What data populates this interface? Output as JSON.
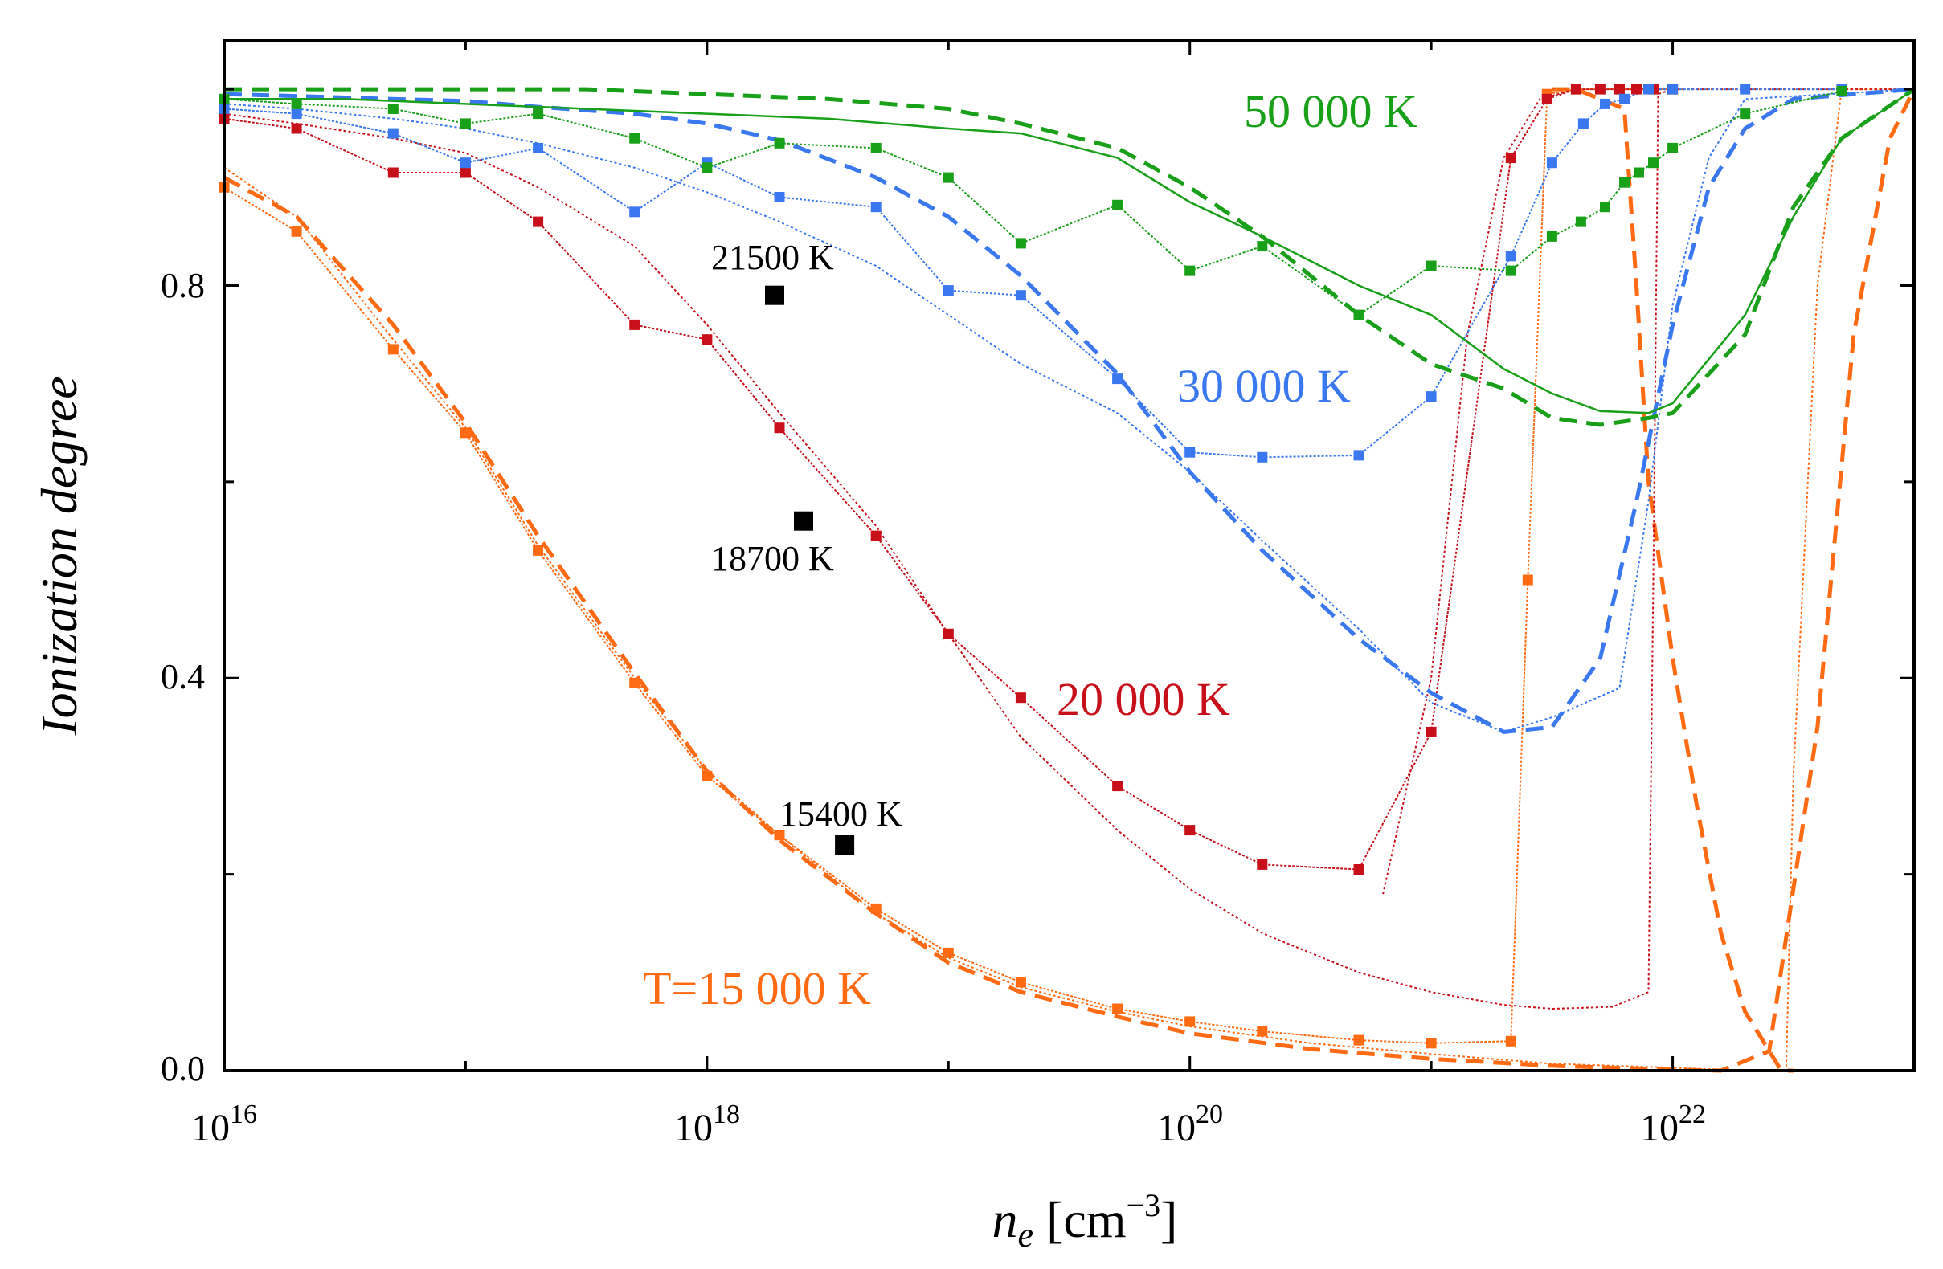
{
  "chart_data": {
    "type": "line",
    "title": "",
    "xlabel": {
      "main": "n",
      "sub": "e",
      "unit": " [cm",
      "sup": "−3",
      "close": "]"
    },
    "ylabel": "Ionization degree",
    "xscale": "log",
    "xlim_log10": [
      16,
      23
    ],
    "ylim": [
      0,
      1.05
    ],
    "xticks": [
      {
        "base": "10",
        "exp": "16",
        "log10": 16
      },
      {
        "base": "10",
        "exp": "18",
        "log10": 18
      },
      {
        "base": "10",
        "exp": "20",
        "log10": 20
      },
      {
        "base": "10",
        "exp": "22",
        "log10": 22
      }
    ],
    "yticks": [
      {
        "label": "0.0",
        "value": 0.0
      },
      {
        "label": "0.4",
        "value": 0.4
      },
      {
        "label": "0.8",
        "value": 0.8
      }
    ],
    "colors": {
      "T15000": "#ff6a13",
      "T20000": "#c8101a",
      "T30000": "#3a78f0",
      "T50000": "#18a018",
      "experiment": "#000000",
      "axes": "#000000"
    },
    "series": [
      {
        "name": "T=15 000 K",
        "color": "T15000",
        "label": "T=15 000 K",
        "dashed": [
          [
            16.0,
            0.91
          ],
          [
            16.3,
            0.87
          ],
          [
            16.7,
            0.76
          ],
          [
            17.0,
            0.66
          ],
          [
            17.3,
            0.545
          ],
          [
            17.7,
            0.405
          ],
          [
            18.0,
            0.305
          ],
          [
            18.3,
            0.235
          ],
          [
            18.7,
            0.16
          ],
          [
            19.0,
            0.11
          ],
          [
            19.3,
            0.08
          ],
          [
            19.7,
            0.055
          ],
          [
            20.0,
            0.038
          ],
          [
            20.5,
            0.022
          ],
          [
            21.0,
            0.012
          ],
          [
            21.5,
            0.005
          ],
          [
            22.0,
            0.001
          ],
          [
            22.2,
            0.0
          ],
          [
            22.4,
            0.02
          ],
          [
            22.6,
            0.35
          ],
          [
            22.75,
            0.75
          ],
          [
            22.9,
            0.95
          ],
          [
            23.0,
            1.0
          ]
        ],
        "thin_dotted": [
          [
            16.0,
            0.92
          ],
          [
            16.3,
            0.87
          ],
          [
            16.7,
            0.745
          ],
          [
            17.0,
            0.655
          ],
          [
            17.3,
            0.535
          ],
          [
            17.7,
            0.4
          ],
          [
            18.0,
            0.305
          ],
          [
            18.3,
            0.24
          ],
          [
            18.7,
            0.16
          ],
          [
            19.0,
            0.115
          ],
          [
            19.3,
            0.085
          ],
          [
            19.7,
            0.06
          ],
          [
            20.0,
            0.045
          ],
          [
            20.5,
            0.028
          ],
          [
            21.0,
            0.017
          ],
          [
            21.5,
            0.007
          ],
          [
            22.0,
            0.003
          ],
          [
            22.3,
            0.0
          ],
          [
            22.47,
            0.0
          ],
          [
            22.5,
            0.3
          ],
          [
            22.6,
            0.8
          ],
          [
            22.7,
            1.0
          ],
          [
            23.0,
            1.0
          ]
        ],
        "markers": [
          [
            16.0,
            0.9
          ],
          [
            16.3,
            0.855
          ],
          [
            16.7,
            0.735
          ],
          [
            17.0,
            0.65
          ],
          [
            17.3,
            0.53
          ],
          [
            17.7,
            0.395
          ],
          [
            18.0,
            0.3
          ],
          [
            18.3,
            0.24
          ],
          [
            18.7,
            0.165
          ],
          [
            19.0,
            0.12
          ],
          [
            19.3,
            0.09
          ],
          [
            19.7,
            0.063
          ],
          [
            20.0,
            0.05
          ],
          [
            20.3,
            0.04
          ],
          [
            20.7,
            0.031
          ],
          [
            21.0,
            0.028
          ],
          [
            21.33,
            0.03
          ],
          [
            21.4,
            0.5
          ],
          [
            21.48,
            0.995
          ],
          [
            21.6,
            1.0
          ],
          [
            22.0,
            1.0
          ]
        ],
        "markers_connected": true,
        "extra_line": {
          "style": "dashed",
          "points": [
            [
              21.5,
              1.0
            ],
            [
              21.6,
              1.0
            ],
            [
              21.7,
              0.99
            ],
            [
              21.8,
              0.98
            ],
            [
              21.85,
              0.8
            ],
            [
              21.9,
              0.6
            ],
            [
              22.0,
              0.42
            ],
            [
              22.1,
              0.27
            ],
            [
              22.2,
              0.14
            ],
            [
              22.3,
              0.06
            ],
            [
              22.45,
              0.0
            ],
            [
              22.5,
              0.0
            ]
          ]
        }
      },
      {
        "name": "20 000 K",
        "color": "T20000",
        "label": "20 000 K",
        "thin_dotted": [
          [
            16.0,
            0.975
          ],
          [
            16.3,
            0.965
          ],
          [
            16.7,
            0.95
          ],
          [
            17.0,
            0.935
          ],
          [
            17.3,
            0.9
          ],
          [
            17.7,
            0.84
          ],
          [
            18.0,
            0.76
          ],
          [
            18.3,
            0.67
          ],
          [
            18.7,
            0.555
          ],
          [
            19.0,
            0.445
          ],
          [
            19.3,
            0.34
          ],
          [
            19.7,
            0.245
          ],
          [
            20.0,
            0.185
          ],
          [
            20.3,
            0.14
          ],
          [
            20.7,
            0.1
          ],
          [
            21.0,
            0.08
          ],
          [
            21.3,
            0.067
          ],
          [
            21.5,
            0.063
          ],
          [
            21.75,
            0.065
          ],
          [
            21.9,
            0.08
          ],
          [
            21.92,
            0.5
          ],
          [
            21.94,
            0.995
          ],
          [
            22.0,
            1.0
          ],
          [
            23.0,
            1.0
          ]
        ],
        "markers": [
          [
            16.0,
            0.97
          ],
          [
            16.3,
            0.96
          ],
          [
            16.7,
            0.915
          ],
          [
            17.0,
            0.915
          ],
          [
            17.3,
            0.865
          ],
          [
            17.7,
            0.76
          ],
          [
            18.0,
            0.745
          ],
          [
            18.3,
            0.655
          ],
          [
            18.7,
            0.545
          ],
          [
            19.0,
            0.445
          ],
          [
            19.3,
            0.38
          ],
          [
            19.7,
            0.29
          ],
          [
            20.0,
            0.245
          ],
          [
            20.3,
            0.21
          ],
          [
            20.7,
            0.205
          ],
          [
            21.0,
            0.345
          ],
          [
            21.33,
            0.93
          ],
          [
            21.48,
            0.99
          ],
          [
            21.6,
            1.0
          ],
          [
            21.7,
            1.0
          ],
          [
            21.78,
            1.0
          ],
          [
            21.85,
            1.0
          ],
          [
            21.92,
            1.0
          ],
          [
            22.0,
            1.0
          ]
        ],
        "markers_connected": true,
        "extra_line": {
          "style": "dotted",
          "points": [
            [
              20.8,
              0.18
            ],
            [
              21.0,
              0.4
            ],
            [
              21.15,
              0.75
            ],
            [
              21.3,
              0.93
            ],
            [
              21.45,
              0.99
            ],
            [
              21.6,
              1.0
            ]
          ]
        }
      },
      {
        "name": "30 000 K",
        "color": "T30000",
        "label": "30 000 K",
        "dashed": [
          [
            16.0,
            0.995
          ],
          [
            16.3,
            0.993
          ],
          [
            16.7,
            0.99
          ],
          [
            17.0,
            0.988
          ],
          [
            17.3,
            0.982
          ],
          [
            17.7,
            0.975
          ],
          [
            18.0,
            0.965
          ],
          [
            18.3,
            0.948
          ],
          [
            18.7,
            0.91
          ],
          [
            19.0,
            0.87
          ],
          [
            19.3,
            0.81
          ],
          [
            19.7,
            0.71
          ],
          [
            20.0,
            0.61
          ],
          [
            20.3,
            0.53
          ],
          [
            20.7,
            0.44
          ],
          [
            21.0,
            0.385
          ],
          [
            21.3,
            0.345
          ],
          [
            21.5,
            0.35
          ],
          [
            21.7,
            0.42
          ],
          [
            21.85,
            0.58
          ],
          [
            22.0,
            0.76
          ],
          [
            22.15,
            0.9
          ],
          [
            22.3,
            0.96
          ],
          [
            22.5,
            0.99
          ],
          [
            23.0,
            1.0
          ]
        ],
        "thin_dotted": [
          [
            16.0,
            0.985
          ],
          [
            16.3,
            0.98
          ],
          [
            16.7,
            0.97
          ],
          [
            17.0,
            0.96
          ],
          [
            17.3,
            0.945
          ],
          [
            17.7,
            0.92
          ],
          [
            18.0,
            0.895
          ],
          [
            18.3,
            0.865
          ],
          [
            18.7,
            0.82
          ],
          [
            19.0,
            0.77
          ],
          [
            19.3,
            0.72
          ],
          [
            19.7,
            0.67
          ],
          [
            20.0,
            0.61
          ],
          [
            20.3,
            0.54
          ],
          [
            20.7,
            0.45
          ],
          [
            21.0,
            0.375
          ],
          [
            21.3,
            0.345
          ],
          [
            21.5,
            0.36
          ],
          [
            21.78,
            0.39
          ],
          [
            21.9,
            0.58
          ],
          [
            22.0,
            0.78
          ],
          [
            22.15,
            0.93
          ],
          [
            22.3,
            0.99
          ],
          [
            23.0,
            1.0
          ]
        ],
        "markers": [
          [
            16.0,
            0.98
          ],
          [
            16.3,
            0.975
          ],
          [
            16.7,
            0.955
          ],
          [
            17.0,
            0.925
          ],
          [
            17.3,
            0.94
          ],
          [
            17.7,
            0.875
          ],
          [
            18.0,
            0.925
          ],
          [
            18.3,
            0.89
          ],
          [
            18.7,
            0.88
          ],
          [
            19.0,
            0.795
          ],
          [
            19.3,
            0.79
          ],
          [
            19.7,
            0.705
          ],
          [
            20.0,
            0.63
          ],
          [
            20.3,
            0.625
          ],
          [
            20.7,
            0.627
          ],
          [
            21.0,
            0.687
          ],
          [
            21.33,
            0.83
          ],
          [
            21.5,
            0.925
          ],
          [
            21.63,
            0.965
          ],
          [
            21.72,
            0.985
          ],
          [
            21.8,
            0.99
          ],
          [
            21.9,
            1.0
          ],
          [
            22.0,
            1.0
          ],
          [
            22.3,
            1.0
          ],
          [
            22.7,
            1.0
          ]
        ],
        "markers_connected": true
      },
      {
        "name": "50 000 K",
        "color": "T50000",
        "label": "50 000 K",
        "dashed": [
          [
            16.0,
            1.0
          ],
          [
            16.5,
            1.0
          ],
          [
            17.0,
            1.0
          ],
          [
            17.5,
            1.0
          ],
          [
            18.0,
            0.995
          ],
          [
            18.5,
            0.99
          ],
          [
            19.0,
            0.98
          ],
          [
            19.3,
            0.965
          ],
          [
            19.7,
            0.94
          ],
          [
            20.0,
            0.9
          ],
          [
            20.3,
            0.85
          ],
          [
            20.7,
            0.77
          ],
          [
            21.0,
            0.72
          ],
          [
            21.3,
            0.695
          ],
          [
            21.5,
            0.665
          ],
          [
            21.7,
            0.658
          ],
          [
            21.9,
            0.665
          ],
          [
            22.0,
            0.67
          ],
          [
            22.3,
            0.75
          ],
          [
            22.5,
            0.88
          ],
          [
            22.7,
            0.95
          ],
          [
            23.0,
            1.0
          ]
        ],
        "solid": [
          [
            16.0,
            0.99
          ],
          [
            16.5,
            0.99
          ],
          [
            17.0,
            0.985
          ],
          [
            17.5,
            0.98
          ],
          [
            18.0,
            0.975
          ],
          [
            18.5,
            0.97
          ],
          [
            19.0,
            0.96
          ],
          [
            19.3,
            0.955
          ],
          [
            19.7,
            0.93
          ],
          [
            20.0,
            0.885
          ],
          [
            20.3,
            0.85
          ],
          [
            20.7,
            0.8
          ],
          [
            21.0,
            0.77
          ],
          [
            21.3,
            0.715
          ],
          [
            21.5,
            0.69
          ],
          [
            21.7,
            0.672
          ],
          [
            21.9,
            0.67
          ],
          [
            22.0,
            0.68
          ],
          [
            22.3,
            0.77
          ],
          [
            22.5,
            0.87
          ],
          [
            22.7,
            0.95
          ],
          [
            23.0,
            1.0
          ]
        ],
        "markers": [
          [
            16.0,
            0.99
          ],
          [
            16.3,
            0.985
          ],
          [
            16.7,
            0.98
          ],
          [
            17.0,
            0.965
          ],
          [
            17.3,
            0.975
          ],
          [
            17.7,
            0.95
          ],
          [
            18.0,
            0.92
          ],
          [
            18.3,
            0.945
          ],
          [
            18.7,
            0.94
          ],
          [
            19.0,
            0.91
          ],
          [
            19.3,
            0.843
          ],
          [
            19.7,
            0.882
          ],
          [
            20.0,
            0.815
          ],
          [
            20.3,
            0.84
          ],
          [
            20.7,
            0.77
          ],
          [
            21.0,
            0.82
          ],
          [
            21.33,
            0.815
          ],
          [
            21.5,
            0.85
          ],
          [
            21.62,
            0.865
          ],
          [
            21.72,
            0.88
          ],
          [
            21.8,
            0.905
          ],
          [
            21.86,
            0.915
          ],
          [
            21.92,
            0.925
          ],
          [
            22.0,
            0.94
          ],
          [
            22.3,
            0.975
          ],
          [
            22.7,
            0.998
          ]
        ],
        "markers_connected": true
      }
    ],
    "experiment": [
      {
        "label": "21500 K",
        "x_log10": 18.28,
        "y": 0.79
      },
      {
        "label": "18700 K",
        "x_log10": 18.4,
        "y": 0.56
      },
      {
        "label": "15400 K",
        "x_log10": 18.57,
        "y": 0.23
      }
    ]
  }
}
